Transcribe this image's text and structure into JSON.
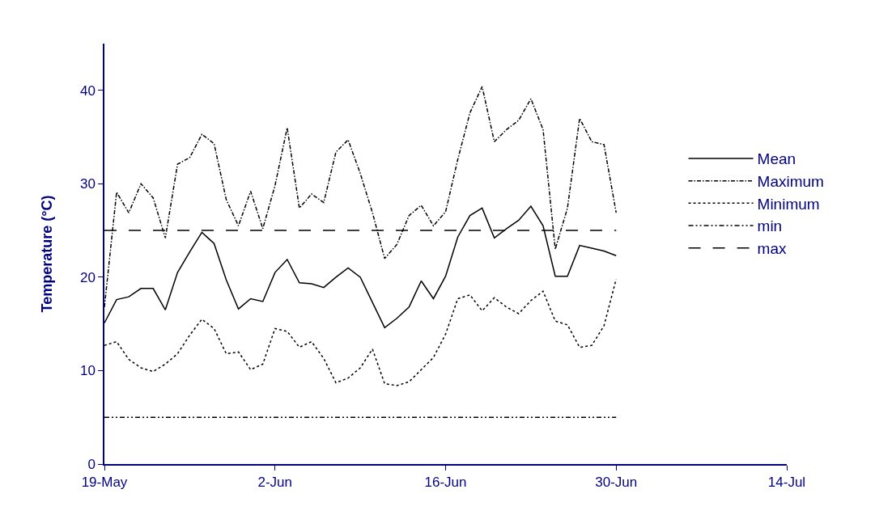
{
  "chart_data": {
    "type": "line",
    "ylabel": "Temperature (°C)",
    "x": [
      "--05-19",
      "--05-20",
      "--05-21",
      "--05-22",
      "--05-23",
      "--05-24",
      "--05-25",
      "--05-26",
      "--05-27",
      "--05-28",
      "--05-29",
      "--05-30",
      "--05-31",
      "--06-01",
      "--06-02",
      "--06-03",
      "--06-04",
      "--06-05",
      "--06-06",
      "--06-07",
      "--06-08",
      "--06-09",
      "--06-10",
      "--06-11",
      "--06-12",
      "--06-13",
      "--06-14",
      "--06-15",
      "--06-16",
      "--06-17",
      "--06-18",
      "--06-19",
      "--06-20",
      "--06-21",
      "--06-22",
      "--06-23",
      "--06-24",
      "--06-25",
      "--06-26",
      "--06-27",
      "--06-28",
      "--06-29",
      "--06-30"
    ],
    "series": [
      {
        "name": "Mean",
        "color": "#000000",
        "line_style": "solid",
        "values": [
          15.1,
          17.6,
          17.9,
          18.8,
          18.8,
          16.5,
          20.5,
          22.7,
          24.8,
          23.6,
          19.7,
          16.6,
          17.7,
          17.4,
          20.5,
          21.9,
          19.4,
          19.3,
          18.9,
          20.0,
          21.0,
          20.0,
          17.3,
          14.6,
          15.6,
          16.8,
          19.6,
          17.7,
          20.1,
          24.3,
          26.6,
          27.4,
          24.2,
          25.2,
          26.1,
          27.6,
          25.5,
          20.1,
          20.1,
          23.4,
          23.1,
          22.8,
          22.3
        ]
      },
      {
        "name": "Maximum",
        "color": "#000000",
        "line_style": "dashdot",
        "values": [
          16.8,
          29.1,
          26.9,
          30.0,
          28.5,
          24.2,
          32.1,
          32.8,
          35.3,
          34.3,
          28.3,
          25.5,
          29.2,
          25.2,
          29.8,
          36.0,
          27.4,
          28.9,
          28.0,
          33.4,
          34.7,
          31.1,
          26.9,
          22.0,
          23.5,
          26.6,
          27.7,
          25.5,
          27.0,
          32.6,
          37.6,
          40.4,
          34.5,
          35.8,
          36.8,
          39.1,
          35.8,
          23.0,
          27.4,
          37.0,
          34.5,
          34.2,
          26.9
        ]
      },
      {
        "name": "Minimum",
        "color": "#000000",
        "line_style": "dotted",
        "values": [
          12.7,
          13.1,
          11.2,
          10.3,
          9.9,
          10.7,
          11.8,
          13.8,
          15.5,
          14.5,
          11.8,
          12.0,
          10.1,
          10.7,
          14.5,
          14.2,
          12.5,
          13.1,
          11.3,
          8.7,
          9.2,
          10.3,
          12.3,
          8.6,
          8.4,
          8.8,
          10.1,
          11.4,
          13.9,
          17.7,
          18.1,
          16.4,
          17.8,
          16.8,
          16.1,
          17.5,
          18.5,
          15.3,
          14.9,
          12.5,
          12.7,
          14.8,
          19.8
        ]
      },
      {
        "name": "min",
        "color": "#000000",
        "line_style": "dashdotdot",
        "x": [
          "--05-19",
          "--06-30"
        ],
        "values": [
          5,
          5
        ]
      },
      {
        "name": "max",
        "color": "#000000",
        "line_style": "longdash",
        "x": [
          "--05-19",
          "--06-30"
        ],
        "values": [
          25,
          25
        ]
      }
    ],
    "xlim": [
      "--05-19",
      "--07-14"
    ],
    "xticks": [
      {
        "value": "--05-19",
        "label": "19-May"
      },
      {
        "value": "--06-02",
        "label": "2-Jun"
      },
      {
        "value": "--06-16",
        "label": "16-Jun"
      },
      {
        "value": "--06-30",
        "label": "30-Jun"
      },
      {
        "value": "--07-14",
        "label": "14-Jul"
      }
    ],
    "ylim": [
      0,
      45
    ],
    "yticks": [
      0,
      10,
      20,
      30,
      40
    ],
    "legend": "right",
    "marker": "none"
  }
}
